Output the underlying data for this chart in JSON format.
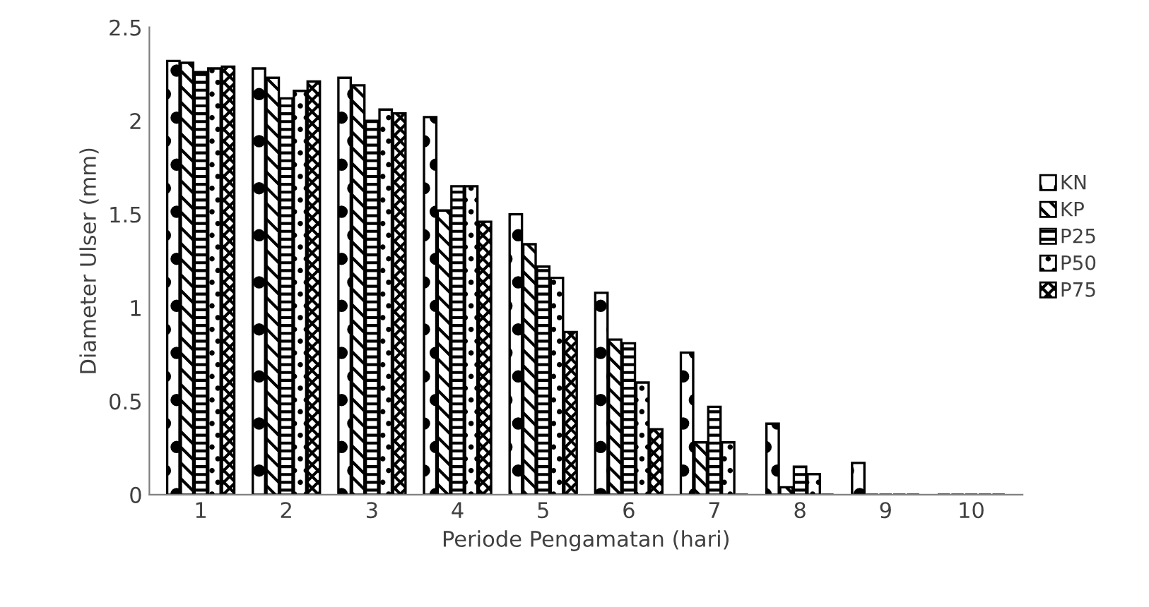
{
  "chart_data": {
    "type": "bar",
    "xlabel": "Periode Pengamatan (hari)",
    "ylabel": "Diameter Ulser (mm)",
    "categories": [
      "1",
      "2",
      "3",
      "4",
      "5",
      "6",
      "7",
      "8",
      "9",
      "10"
    ],
    "series": [
      {
        "name": "KN",
        "color": "#000000",
        "values": [
          2.32,
          2.28,
          2.23,
          2.02,
          1.5,
          1.08,
          0.76,
          0.38,
          0.17,
          0
        ]
      },
      {
        "name": "KP",
        "color": "#000000",
        "values": [
          2.31,
          2.23,
          2.19,
          1.52,
          1.34,
          0.83,
          0.28,
          0.04,
          0,
          0
        ]
      },
      {
        "name": "P25",
        "color": "#000000",
        "values": [
          2.26,
          2.12,
          2.0,
          1.65,
          1.22,
          0.81,
          0.47,
          0.15,
          0,
          0
        ]
      },
      {
        "name": "P50",
        "color": "#000000",
        "values": [
          2.28,
          2.16,
          2.06,
          1.65,
          1.16,
          0.6,
          0.28,
          0.11,
          0,
          0
        ]
      },
      {
        "name": "P75",
        "color": "#000000",
        "values": [
          2.29,
          2.21,
          2.04,
          1.46,
          0.87,
          0.35,
          0,
          0,
          0,
          0
        ]
      }
    ],
    "ylim": [
      0,
      2.5
    ],
    "yticks": [
      0,
      0.5,
      1,
      1.5,
      2,
      2.5
    ],
    "grid": false,
    "legend": "right"
  }
}
